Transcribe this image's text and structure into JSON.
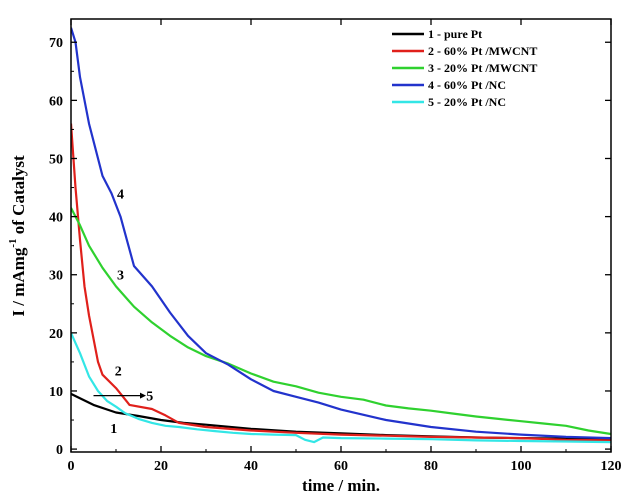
{
  "chart_data": {
    "type": "line",
    "title": "",
    "xlabel": "time / min.",
    "ylabel_main": "I / mAmg",
    "ylabel_sup": "-1",
    "ylabel_tail": " of Catalyst",
    "xlim": [
      0,
      120
    ],
    "ylim": [
      -0.5,
      74
    ],
    "xticks": [
      0,
      20,
      40,
      60,
      80,
      100,
      120
    ],
    "yticks": [
      0,
      10,
      20,
      30,
      40,
      50,
      60,
      70
    ],
    "grid": false,
    "legend_position": "top-right",
    "series": [
      {
        "name": "1 -  pure Pt",
        "color": "#000000",
        "x": [
          0,
          5,
          10,
          15,
          20,
          25,
          30,
          40,
          50,
          60,
          70,
          80,
          90,
          100,
          110,
          120
        ],
        "y": [
          9.5,
          7.6,
          6.3,
          5.7,
          5.0,
          4.5,
          4.2,
          3.5,
          3.0,
          2.7,
          2.4,
          2.2,
          2.0,
          1.9,
          1.8,
          1.6
        ]
      },
      {
        "name": "2 - 60% Pt /MWCNT",
        "color": "#e0201b",
        "x": [
          0,
          1,
          2,
          3,
          4,
          5,
          6,
          7,
          10,
          13,
          18,
          21,
          24,
          30,
          40,
          50,
          60,
          70,
          80,
          90,
          100,
          110,
          120
        ],
        "y": [
          56,
          45,
          36,
          28,
          23,
          19,
          15,
          12.8,
          10.5,
          7.6,
          6.9,
          5.8,
          4.5,
          3.8,
          3.2,
          2.8,
          2.5,
          2.3,
          2.1,
          2.0,
          1.9,
          1.6,
          1.5
        ]
      },
      {
        "name": "3 - 20% Pt /MWCNT",
        "color": "#2fd12f",
        "x": [
          0,
          2,
          4,
          7,
          10,
          14,
          18,
          22,
          26,
          30,
          35,
          40,
          45,
          50,
          55,
          60,
          65,
          70,
          75,
          80,
          85,
          90,
          95,
          100,
          105,
          110,
          115,
          120
        ],
        "y": [
          41.5,
          38.5,
          35,
          31.2,
          28,
          24.5,
          21.8,
          19.5,
          17.5,
          16.0,
          14.7,
          13.0,
          11.6,
          10.8,
          9.7,
          9.0,
          8.5,
          7.5,
          7.0,
          6.6,
          6.1,
          5.6,
          5.2,
          4.8,
          4.4,
          4.0,
          3.2,
          2.6
        ]
      },
      {
        "name": "4 - 60% Pt /NC",
        "color": "#2233cc",
        "x": [
          0,
          1,
          2,
          4,
          7,
          9,
          11,
          14,
          18,
          22,
          26,
          30,
          35,
          40,
          45,
          50,
          55,
          60,
          70,
          80,
          90,
          100,
          110,
          120
        ],
        "y": [
          72.5,
          70,
          64,
          56,
          47,
          44,
          40,
          31.5,
          28,
          23.5,
          19.5,
          16.5,
          14.5,
          12.0,
          10.0,
          9.0,
          8.0,
          6.8,
          5.0,
          3.8,
          3.0,
          2.5,
          2.1,
          1.9
        ]
      },
      {
        "name": "5 - 20% Pt /NC",
        "color": "#33e6e6",
        "x": [
          0,
          2,
          4,
          6,
          8,
          10,
          12,
          15,
          18,
          21,
          24,
          28,
          32,
          36,
          40,
          45,
          50,
          52,
          54,
          56,
          60,
          70,
          80,
          90,
          100,
          110,
          120
        ],
        "y": [
          20,
          16.5,
          12.5,
          10.0,
          8.3,
          7.3,
          6.2,
          5.2,
          4.5,
          4.0,
          3.8,
          3.4,
          3.1,
          2.8,
          2.6,
          2.5,
          2.4,
          1.6,
          1.2,
          2.0,
          1.9,
          1.8,
          1.7,
          1.5,
          1.4,
          1.3,
          1.2
        ]
      }
    ],
    "annotations": [
      {
        "text": "1",
        "x": 9.5,
        "y": 3.6
      },
      {
        "text": "2",
        "x": 10.5,
        "y": 13.5
      },
      {
        "text": "3",
        "x": 11,
        "y": 30
      },
      {
        "text": "4",
        "x": 11,
        "y": 44
      },
      {
        "text": "5",
        "x": 17.5,
        "y": 9.2
      }
    ]
  }
}
